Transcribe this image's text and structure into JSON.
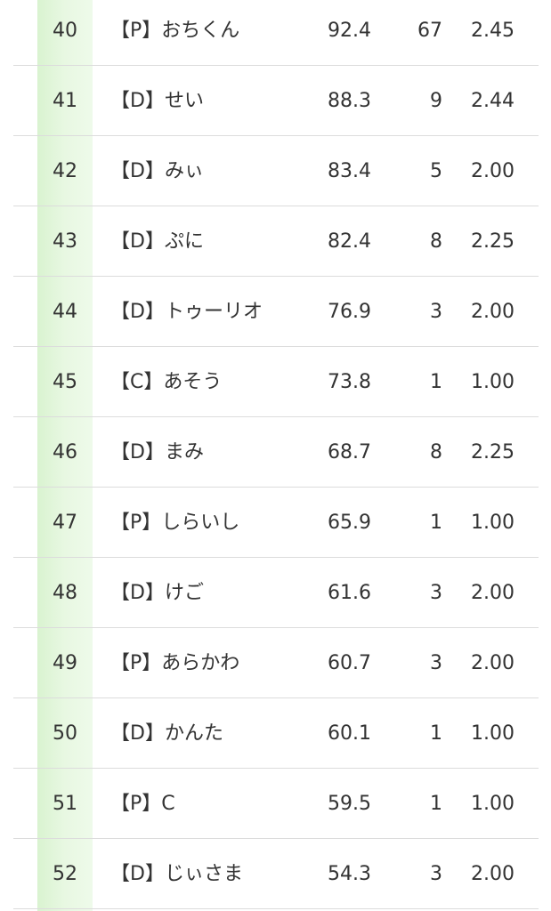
{
  "table": {
    "rows": [
      [
        "40",
        "【P】おちくん",
        "92.4",
        "67",
        "2.45"
      ],
      [
        "41",
        "【D】せい",
        "88.3",
        "9",
        "2.44"
      ],
      [
        "42",
        "【D】みぃ",
        "83.4",
        "5",
        "2.00"
      ],
      [
        "43",
        "【D】ぷに",
        "82.4",
        "8",
        "2.25"
      ],
      [
        "44",
        "【D】トゥーリオ",
        "76.9",
        "3",
        "2.00"
      ],
      [
        "45",
        "【C】あそう",
        "73.8",
        "1",
        "1.00"
      ],
      [
        "46",
        "【D】まみ",
        "68.7",
        "8",
        "2.25"
      ],
      [
        "47",
        "【P】しらいし",
        "65.9",
        "1",
        "1.00"
      ],
      [
        "48",
        "【D】けご",
        "61.6",
        "3",
        "2.00"
      ],
      [
        "49",
        "【P】あらかわ",
        "60.7",
        "3",
        "2.00"
      ],
      [
        "50",
        "【D】かんた",
        "60.1",
        "1",
        "1.00"
      ],
      [
        "51",
        "【P】C",
        "59.5",
        "1",
        "1.00"
      ],
      [
        "52",
        "【D】じぃさま",
        "54.3",
        "3",
        "2.00"
      ]
    ]
  }
}
